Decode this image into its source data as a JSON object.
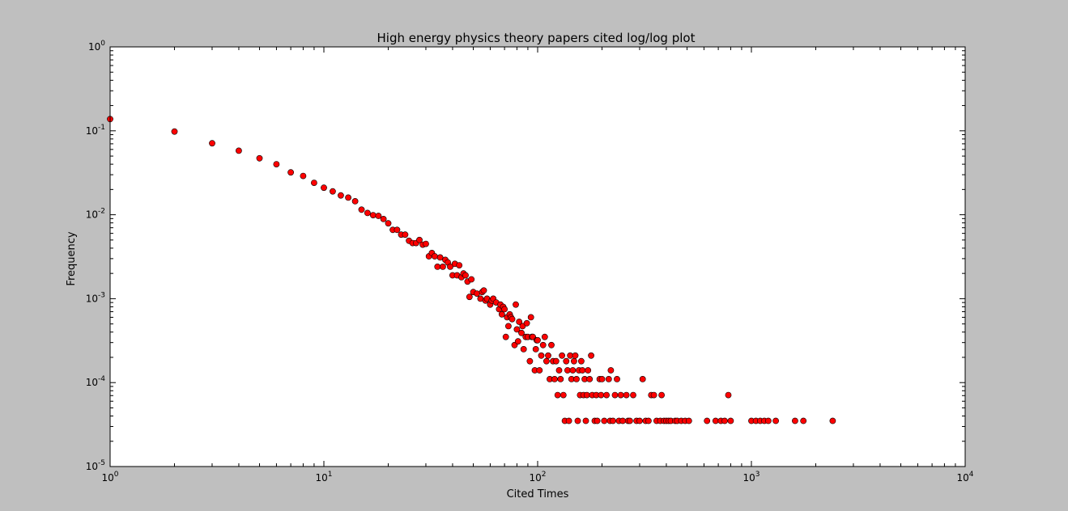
{
  "chart_data": {
    "type": "scatter",
    "title": "High energy physics theory papers cited log/log plot",
    "xlabel": "Cited Times",
    "ylabel": "Frequency",
    "xscale": "log",
    "yscale": "log",
    "xlim": [
      1,
      10000
    ],
    "ylim": [
      1e-05,
      1
    ],
    "grid": false,
    "marker_color": "#ff0000",
    "marker_edge_color": "#000000",
    "xticks": [
      {
        "value": 1,
        "base": "10",
        "exp": "0"
      },
      {
        "value": 10,
        "base": "10",
        "exp": "1"
      },
      {
        "value": 100,
        "base": "10",
        "exp": "2"
      },
      {
        "value": 1000,
        "base": "10",
        "exp": "3"
      },
      {
        "value": 10000,
        "base": "10",
        "exp": "4"
      }
    ],
    "yticks": [
      {
        "value": 1,
        "base": "10",
        "exp": "0"
      },
      {
        "value": 0.1,
        "base": "10",
        "exp": "-1"
      },
      {
        "value": 0.01,
        "base": "10",
        "exp": "-2"
      },
      {
        "value": 0.001,
        "base": "10",
        "exp": "-3"
      },
      {
        "value": 0.0001,
        "base": "10",
        "exp": "-4"
      },
      {
        "value": 1e-05,
        "base": "10",
        "exp": "-5"
      }
    ],
    "points": [
      [
        1,
        0.138
      ],
      [
        2,
        0.098
      ],
      [
        3,
        0.071
      ],
      [
        4,
        0.058
      ],
      [
        5,
        0.047
      ],
      [
        6,
        0.04
      ],
      [
        7,
        0.032
      ],
      [
        8,
        0.029
      ],
      [
        9,
        0.024
      ],
      [
        10,
        0.021
      ],
      [
        11,
        0.019
      ],
      [
        12,
        0.017
      ],
      [
        13,
        0.016
      ],
      [
        14,
        0.0145
      ],
      [
        15,
        0.0115
      ],
      [
        16,
        0.0105
      ],
      [
        17,
        0.0099
      ],
      [
        18,
        0.0097
      ],
      [
        19,
        0.0089
      ],
      [
        20,
        0.0079
      ],
      [
        21,
        0.0066
      ],
      [
        22,
        0.0066
      ],
      [
        23,
        0.0058
      ],
      [
        24,
        0.0058
      ],
      [
        25,
        0.0049
      ],
      [
        26,
        0.0046
      ],
      [
        27,
        0.0046
      ],
      [
        28,
        0.005
      ],
      [
        29,
        0.0044
      ],
      [
        30,
        0.0045
      ],
      [
        31,
        0.0032
      ],
      [
        32,
        0.0035
      ],
      [
        33,
        0.0032
      ],
      [
        34,
        0.0024
      ],
      [
        35,
        0.0031
      ],
      [
        36,
        0.0024
      ],
      [
        37,
        0.0029
      ],
      [
        38,
        0.0027
      ],
      [
        39,
        0.0024
      ],
      [
        40,
        0.0019
      ],
      [
        41,
        0.0026
      ],
      [
        42,
        0.0019
      ],
      [
        43,
        0.0025
      ],
      [
        44,
        0.0018
      ],
      [
        45,
        0.002
      ],
      [
        46,
        0.0019
      ],
      [
        47,
        0.0016
      ],
      [
        48,
        0.00105
      ],
      [
        49,
        0.0017
      ],
      [
        50,
        0.0012
      ],
      [
        52,
        0.00115
      ],
      [
        54,
        0.001
      ],
      [
        55,
        0.0012
      ],
      [
        56,
        0.00125
      ],
      [
        57,
        0.00095
      ],
      [
        58,
        0.001
      ],
      [
        60,
        0.00085
      ],
      [
        61,
        0.00095
      ],
      [
        62,
        0.001
      ],
      [
        64,
        0.0009
      ],
      [
        66,
        0.00075
      ],
      [
        67,
        0.00085
      ],
      [
        68,
        0.00065
      ],
      [
        69,
        0.0008
      ],
      [
        70,
        0.00075
      ],
      [
        71,
        0.00035
      ],
      [
        72,
        0.0006
      ],
      [
        73,
        0.00047
      ],
      [
        74,
        0.00065
      ],
      [
        75,
        0.0006
      ],
      [
        76,
        0.00057
      ],
      [
        78,
        0.00028
      ],
      [
        79,
        0.00085
      ],
      [
        80,
        0.00043
      ],
      [
        81,
        0.00031
      ],
      [
        82,
        0.00053
      ],
      [
        84,
        0.00039
      ],
      [
        85,
        0.00047
      ],
      [
        86,
        0.00025
      ],
      [
        88,
        0.00035
      ],
      [
        89,
        0.00051
      ],
      [
        90,
        0.00035
      ],
      [
        92,
        0.00018
      ],
      [
        93,
        0.0006
      ],
      [
        94,
        0.00035
      ],
      [
        95,
        0.00035
      ],
      [
        97,
        0.00014
      ],
      [
        98,
        0.00025
      ],
      [
        99,
        0.00032
      ],
      [
        100,
        0.00032
      ],
      [
        102,
        0.00014
      ],
      [
        104,
        0.00021
      ],
      [
        106,
        0.00028
      ],
      [
        108,
        0.00035
      ],
      [
        110,
        0.00018
      ],
      [
        112,
        0.00021
      ],
      [
        114,
        0.00011
      ],
      [
        116,
        0.00028
      ],
      [
        118,
        0.00018
      ],
      [
        120,
        0.00011
      ],
      [
        122,
        0.00018
      ],
      [
        124,
        7.1e-05
      ],
      [
        126,
        0.00014
      ],
      [
        128,
        0.00011
      ],
      [
        130,
        0.00021
      ],
      [
        132,
        7.1e-05
      ],
      [
        134,
        3.5e-05
      ],
      [
        136,
        0.00018
      ],
      [
        138,
        0.00014
      ],
      [
        140,
        3.5e-05
      ],
      [
        142,
        0.00021
      ],
      [
        144,
        0.00011
      ],
      [
        146,
        0.00014
      ],
      [
        148,
        0.00018
      ],
      [
        150,
        0.00021
      ],
      [
        152,
        0.00011
      ],
      [
        154,
        3.5e-05
      ],
      [
        156,
        0.00014
      ],
      [
        158,
        7.1e-05
      ],
      [
        160,
        0.00018
      ],
      [
        162,
        0.00014
      ],
      [
        164,
        7.1e-05
      ],
      [
        166,
        0.00011
      ],
      [
        168,
        3.5e-05
      ],
      [
        170,
        7.1e-05
      ],
      [
        172,
        0.00014
      ],
      [
        175,
        0.00011
      ],
      [
        178,
        0.00021
      ],
      [
        180,
        7.1e-05
      ],
      [
        185,
        3.5e-05
      ],
      [
        188,
        7.1e-05
      ],
      [
        190,
        3.5e-05
      ],
      [
        195,
        0.00011
      ],
      [
        198,
        7.1e-05
      ],
      [
        200,
        0.00011
      ],
      [
        205,
        3.5e-05
      ],
      [
        210,
        7.1e-05
      ],
      [
        215,
        0.00011
      ],
      [
        218,
        3.5e-05
      ],
      [
        220,
        0.00014
      ],
      [
        225,
        3.5e-05
      ],
      [
        230,
        7.1e-05
      ],
      [
        235,
        0.00011
      ],
      [
        240,
        3.5e-05
      ],
      [
        245,
        7.1e-05
      ],
      [
        250,
        3.5e-05
      ],
      [
        260,
        7.1e-05
      ],
      [
        265,
        3.5e-05
      ],
      [
        270,
        3.5e-05
      ],
      [
        280,
        7.1e-05
      ],
      [
        290,
        3.5e-05
      ],
      [
        300,
        3.5e-05
      ],
      [
        310,
        0.00011
      ],
      [
        320,
        3.5e-05
      ],
      [
        330,
        3.5e-05
      ],
      [
        340,
        7.1e-05
      ],
      [
        350,
        7.1e-05
      ],
      [
        360,
        3.5e-05
      ],
      [
        375,
        3.5e-05
      ],
      [
        380,
        7.1e-05
      ],
      [
        390,
        3.5e-05
      ],
      [
        400,
        3.5e-05
      ],
      [
        410,
        3.5e-05
      ],
      [
        420,
        3.5e-05
      ],
      [
        440,
        3.5e-05
      ],
      [
        450,
        3.5e-05
      ],
      [
        470,
        3.5e-05
      ],
      [
        490,
        3.5e-05
      ],
      [
        510,
        3.5e-05
      ],
      [
        620,
        3.5e-05
      ],
      [
        680,
        3.5e-05
      ],
      [
        720,
        3.5e-05
      ],
      [
        750,
        3.5e-05
      ],
      [
        780,
        7.1e-05
      ],
      [
        800,
        3.5e-05
      ],
      [
        1000,
        3.5e-05
      ],
      [
        1050,
        3.5e-05
      ],
      [
        1100,
        3.5e-05
      ],
      [
        1150,
        3.5e-05
      ],
      [
        1200,
        3.5e-05
      ],
      [
        1300,
        3.5e-05
      ],
      [
        1600,
        3.5e-05
      ],
      [
        1750,
        3.5e-05
      ],
      [
        2400,
        3.5e-05
      ]
    ]
  }
}
